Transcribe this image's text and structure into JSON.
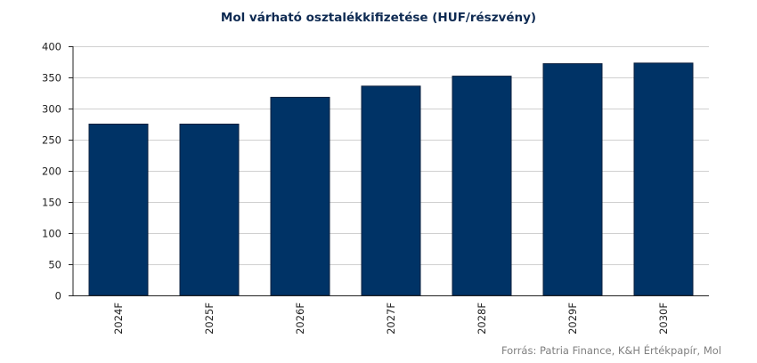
{
  "chart_data": {
    "type": "bar",
    "title": "Mol várható osztalékkifizetése (HUF/részvény)",
    "categories": [
      "2024F",
      "2025F",
      "2026F",
      "2027F",
      "2028F",
      "2029F",
      "2030F"
    ],
    "values": [
      275,
      275,
      318,
      336,
      352,
      372,
      373
    ],
    "ylim": [
      0,
      400
    ],
    "yticks": [
      0,
      50,
      100,
      150,
      200,
      250,
      300,
      350,
      400
    ],
    "xlabel": "",
    "ylabel": "",
    "grid": true,
    "legend": "none",
    "bar_color": "#003366",
    "source": "Forrás: Patria Finance, K&H Értékpapír, Mol"
  }
}
